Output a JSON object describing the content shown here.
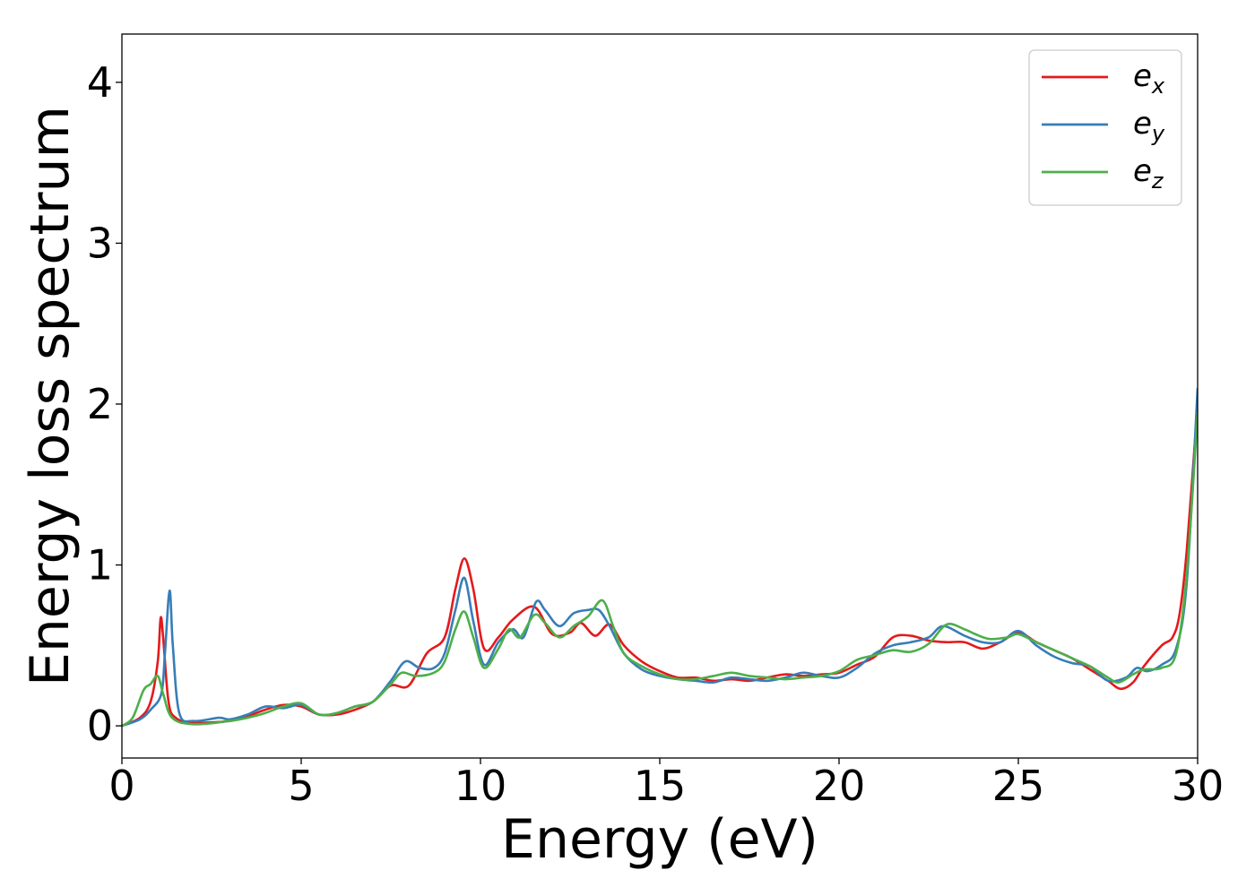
{
  "chart_data": {
    "type": "line",
    "xlabel": "Energy (eV)",
    "ylabel": "Energy loss spectrum",
    "xlim": [
      0,
      30
    ],
    "ylim": [
      -0.2,
      4.3
    ],
    "xticks": [
      0,
      5,
      10,
      15,
      20,
      25,
      30
    ],
    "yticks": [
      0,
      1,
      2,
      3,
      4
    ],
    "grid": false,
    "legend_position": "top-right",
    "series": [
      {
        "name": "e_x",
        "legend_main": "e",
        "legend_sub": "x",
        "color": "#e41a1c",
        "points": [
          [
            0,
            0
          ],
          [
            0.5,
            0.05
          ],
          [
            0.8,
            0.15
          ],
          [
            1.0,
            0.4
          ],
          [
            1.08,
            0.67
          ],
          [
            1.15,
            0.55
          ],
          [
            1.3,
            0.15
          ],
          [
            1.5,
            0.05
          ],
          [
            2.0,
            0.02
          ],
          [
            3.0,
            0.03
          ],
          [
            3.5,
            0.06
          ],
          [
            4.0,
            0.1
          ],
          [
            4.5,
            0.13
          ],
          [
            5.0,
            0.12
          ],
          [
            5.5,
            0.07
          ],
          [
            6.0,
            0.07
          ],
          [
            6.5,
            0.1
          ],
          [
            7.0,
            0.15
          ],
          [
            7.5,
            0.25
          ],
          [
            8.0,
            0.25
          ],
          [
            8.5,
            0.45
          ],
          [
            9.0,
            0.55
          ],
          [
            9.3,
            0.85
          ],
          [
            9.55,
            1.04
          ],
          [
            9.8,
            0.85
          ],
          [
            10.1,
            0.48
          ],
          [
            10.5,
            0.55
          ],
          [
            10.9,
            0.66
          ],
          [
            11.5,
            0.74
          ],
          [
            12.0,
            0.57
          ],
          [
            12.5,
            0.58
          ],
          [
            12.8,
            0.64
          ],
          [
            13.2,
            0.56
          ],
          [
            13.6,
            0.63
          ],
          [
            14.0,
            0.5
          ],
          [
            14.5,
            0.4
          ],
          [
            15.0,
            0.34
          ],
          [
            15.5,
            0.3
          ],
          [
            16.0,
            0.3
          ],
          [
            16.5,
            0.28
          ],
          [
            17.0,
            0.29
          ],
          [
            17.5,
            0.28
          ],
          [
            18.0,
            0.3
          ],
          [
            18.5,
            0.32
          ],
          [
            19.0,
            0.31
          ],
          [
            19.5,
            0.32
          ],
          [
            20.0,
            0.33
          ],
          [
            20.5,
            0.38
          ],
          [
            21.0,
            0.43
          ],
          [
            21.5,
            0.55
          ],
          [
            22.0,
            0.56
          ],
          [
            22.5,
            0.53
          ],
          [
            23.0,
            0.52
          ],
          [
            23.5,
            0.52
          ],
          [
            24.0,
            0.48
          ],
          [
            24.5,
            0.52
          ],
          [
            25.0,
            0.58
          ],
          [
            25.5,
            0.52
          ],
          [
            26.0,
            0.47
          ],
          [
            26.5,
            0.42
          ],
          [
            27.0,
            0.35
          ],
          [
            27.5,
            0.28
          ],
          [
            27.85,
            0.23
          ],
          [
            28.2,
            0.27
          ],
          [
            28.5,
            0.37
          ],
          [
            29.0,
            0.5
          ],
          [
            29.3,
            0.55
          ],
          [
            29.5,
            0.7
          ],
          [
            29.7,
            1.1
          ],
          [
            30.0,
            2.0
          ]
        ]
      },
      {
        "name": "e_y",
        "legend_main": "e",
        "legend_sub": "y",
        "color": "#377eb8",
        "points": [
          [
            0,
            0
          ],
          [
            0.5,
            0.04
          ],
          [
            0.8,
            0.1
          ],
          [
            1.1,
            0.2
          ],
          [
            1.2,
            0.45
          ],
          [
            1.33,
            0.84
          ],
          [
            1.42,
            0.5
          ],
          [
            1.6,
            0.08
          ],
          [
            2.0,
            0.03
          ],
          [
            2.7,
            0.05
          ],
          [
            3.0,
            0.04
          ],
          [
            3.5,
            0.07
          ],
          [
            4.0,
            0.12
          ],
          [
            4.5,
            0.11
          ],
          [
            5.0,
            0.13
          ],
          [
            5.5,
            0.07
          ],
          [
            6.0,
            0.08
          ],
          [
            6.5,
            0.12
          ],
          [
            7.0,
            0.15
          ],
          [
            7.5,
            0.28
          ],
          [
            7.9,
            0.4
          ],
          [
            8.3,
            0.36
          ],
          [
            8.7,
            0.36
          ],
          [
            9.0,
            0.45
          ],
          [
            9.3,
            0.72
          ],
          [
            9.55,
            0.92
          ],
          [
            9.8,
            0.65
          ],
          [
            10.1,
            0.38
          ],
          [
            10.5,
            0.52
          ],
          [
            10.9,
            0.6
          ],
          [
            11.2,
            0.55
          ],
          [
            11.55,
            0.77
          ],
          [
            11.8,
            0.72
          ],
          [
            12.2,
            0.62
          ],
          [
            12.6,
            0.7
          ],
          [
            13.0,
            0.72
          ],
          [
            13.3,
            0.72
          ],
          [
            13.6,
            0.62
          ],
          [
            14.0,
            0.45
          ],
          [
            14.5,
            0.35
          ],
          [
            15.0,
            0.31
          ],
          [
            15.5,
            0.29
          ],
          [
            16.0,
            0.28
          ],
          [
            16.5,
            0.27
          ],
          [
            17.0,
            0.3
          ],
          [
            17.5,
            0.29
          ],
          [
            18.0,
            0.28
          ],
          [
            18.5,
            0.3
          ],
          [
            19.0,
            0.33
          ],
          [
            19.5,
            0.31
          ],
          [
            20.0,
            0.3
          ],
          [
            20.5,
            0.36
          ],
          [
            21.0,
            0.45
          ],
          [
            21.5,
            0.5
          ],
          [
            22.0,
            0.52
          ],
          [
            22.5,
            0.55
          ],
          [
            22.9,
            0.62
          ],
          [
            23.5,
            0.56
          ],
          [
            24.0,
            0.52
          ],
          [
            24.5,
            0.52
          ],
          [
            25.0,
            0.59
          ],
          [
            25.5,
            0.5
          ],
          [
            26.0,
            0.43
          ],
          [
            26.5,
            0.39
          ],
          [
            27.0,
            0.37
          ],
          [
            27.5,
            0.28
          ],
          [
            28.0,
            0.3
          ],
          [
            28.3,
            0.36
          ],
          [
            28.6,
            0.34
          ],
          [
            29.0,
            0.38
          ],
          [
            29.4,
            0.48
          ],
          [
            29.7,
            0.9
          ],
          [
            30.0,
            2.1
          ]
        ]
      },
      {
        "name": "e_z",
        "legend_main": "e",
        "legend_sub": "z",
        "color": "#4daf4a",
        "points": [
          [
            0,
            0
          ],
          [
            0.3,
            0.05
          ],
          [
            0.6,
            0.22
          ],
          [
            0.8,
            0.26
          ],
          [
            1.0,
            0.31
          ],
          [
            1.15,
            0.2
          ],
          [
            1.4,
            0.05
          ],
          [
            2.0,
            0.01
          ],
          [
            3.0,
            0.03
          ],
          [
            3.5,
            0.05
          ],
          [
            4.0,
            0.08
          ],
          [
            4.5,
            0.12
          ],
          [
            5.0,
            0.14
          ],
          [
            5.5,
            0.07
          ],
          [
            6.0,
            0.08
          ],
          [
            6.5,
            0.12
          ],
          [
            7.0,
            0.15
          ],
          [
            7.5,
            0.26
          ],
          [
            7.8,
            0.33
          ],
          [
            8.2,
            0.31
          ],
          [
            8.7,
            0.33
          ],
          [
            9.0,
            0.4
          ],
          [
            9.3,
            0.6
          ],
          [
            9.55,
            0.71
          ],
          [
            9.8,
            0.55
          ],
          [
            10.1,
            0.36
          ],
          [
            10.5,
            0.48
          ],
          [
            10.8,
            0.6
          ],
          [
            11.1,
            0.55
          ],
          [
            11.5,
            0.69
          ],
          [
            11.8,
            0.64
          ],
          [
            12.2,
            0.55
          ],
          [
            12.6,
            0.62
          ],
          [
            13.0,
            0.68
          ],
          [
            13.4,
            0.78
          ],
          [
            13.7,
            0.62
          ],
          [
            14.0,
            0.45
          ],
          [
            14.5,
            0.37
          ],
          [
            15.0,
            0.32
          ],
          [
            15.5,
            0.29
          ],
          [
            16.0,
            0.29
          ],
          [
            16.5,
            0.31
          ],
          [
            17.0,
            0.33
          ],
          [
            17.5,
            0.31
          ],
          [
            18.0,
            0.3
          ],
          [
            18.5,
            0.29
          ],
          [
            19.0,
            0.3
          ],
          [
            19.5,
            0.31
          ],
          [
            20.0,
            0.34
          ],
          [
            20.5,
            0.41
          ],
          [
            21.0,
            0.44
          ],
          [
            21.5,
            0.47
          ],
          [
            22.0,
            0.46
          ],
          [
            22.5,
            0.51
          ],
          [
            23.0,
            0.63
          ],
          [
            23.5,
            0.6
          ],
          [
            23.8,
            0.57
          ],
          [
            24.2,
            0.54
          ],
          [
            24.7,
            0.55
          ],
          [
            25.0,
            0.57
          ],
          [
            25.5,
            0.52
          ],
          [
            26.0,
            0.47
          ],
          [
            26.5,
            0.42
          ],
          [
            27.0,
            0.37
          ],
          [
            27.5,
            0.3
          ],
          [
            27.8,
            0.27
          ],
          [
            28.2,
            0.32
          ],
          [
            28.5,
            0.35
          ],
          [
            29.0,
            0.36
          ],
          [
            29.4,
            0.45
          ],
          [
            29.7,
            0.95
          ],
          [
            30.0,
            1.95
          ]
        ]
      }
    ]
  }
}
